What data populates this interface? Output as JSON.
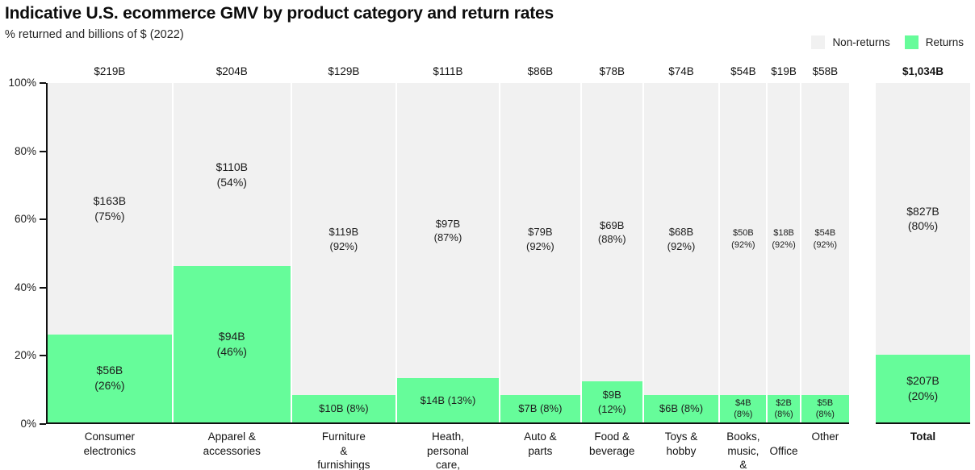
{
  "header": {
    "title": "Indicative U.S. ecommerce GMV by product category and return rates",
    "subtitle": "% returned and billions of $ (2022)"
  },
  "legend": {
    "non_returns": "Non-returns",
    "returns": "Returns"
  },
  "colors": {
    "returns": "#66fc9a",
    "non_returns": "#f1f1f1",
    "axis": "#111111"
  },
  "chart_data": {
    "type": "bar",
    "variant": "marimekko-stacked",
    "title": "Indicative U.S. ecommerce GMV by product category and return rates",
    "subtitle": "% returned and billions of $ (2022)",
    "unit": "billions of $",
    "y_axis": {
      "ticks": [
        "0%",
        "20%",
        "40%",
        "60%",
        "80%",
        "100%"
      ],
      "range": [
        0,
        100
      ]
    },
    "legend_position": "top-right",
    "series_names": [
      "Non-returns",
      "Returns"
    ],
    "categories": [
      {
        "name": "Consumer electronics",
        "axis_label": "Consumer electronics",
        "gmv": 219,
        "gmv_label": "$219B",
        "non_returns": {
          "value": 163,
          "pct": 75,
          "label": "$163B\n(75%)"
        },
        "returns": {
          "value": 56,
          "pct": 26,
          "label": "$56B\n(26%)"
        }
      },
      {
        "name": "Apparel & accessories",
        "axis_label": "Apparel & accessories",
        "gmv": 204,
        "gmv_label": "$204B",
        "non_returns": {
          "value": 110,
          "pct": 54,
          "label": "$110B\n(54%)"
        },
        "returns": {
          "value": 94,
          "pct": 46,
          "label": "$94B\n(46%)"
        }
      },
      {
        "name": "Furniture & furnishings",
        "axis_label": "Furniture &\nfurnishings",
        "gmv": 129,
        "gmv_label": "$129B",
        "non_returns": {
          "value": 119,
          "pct": 92,
          "label": "$119B\n(92%)"
        },
        "returns": {
          "value": 10,
          "pct": 8,
          "label": "$10B (8%)"
        }
      },
      {
        "name": "Heath, personal care, & beauty",
        "axis_label": "Heath,\npersonal care,\n& beauty",
        "gmv": 111,
        "gmv_label": "$111B",
        "non_returns": {
          "value": 97,
          "pct": 87,
          "label": "$97B\n(87%)"
        },
        "returns": {
          "value": 14,
          "pct": 13,
          "label": "$14B (13%)"
        }
      },
      {
        "name": "Auto & parts",
        "axis_label": "Auto &\nparts",
        "gmv": 86,
        "gmv_label": "$86B",
        "non_returns": {
          "value": 79,
          "pct": 92,
          "label": "$79B\n(92%)"
        },
        "returns": {
          "value": 7,
          "pct": 8,
          "label": "$7B (8%)"
        }
      },
      {
        "name": "Food & beverage",
        "axis_label": "Food &\nbeverage",
        "gmv": 78,
        "gmv_label": "$78B",
        "non_returns": {
          "value": 69,
          "pct": 88,
          "label": "$69B\n(88%)"
        },
        "returns": {
          "value": 9,
          "pct": 12,
          "label": "$9B\n(12%)"
        }
      },
      {
        "name": "Toys & hobby",
        "axis_label": "Toys &\nhobby",
        "gmv": 74,
        "gmv_label": "$74B",
        "non_returns": {
          "value": 68,
          "pct": 92,
          "label": "$68B\n(92%)"
        },
        "returns": {
          "value": 6,
          "pct": 8,
          "label": "$6B (8%)"
        }
      },
      {
        "name": "Books, music, & video",
        "axis_label": "Books,\nmusic,\n& video",
        "gmv": 54,
        "gmv_label": "$54B",
        "non_returns": {
          "value": 50,
          "pct": 92,
          "label": "$50B\n(92%)"
        },
        "returns": {
          "value": 4,
          "pct": 8,
          "label": "$4B\n(8%)"
        }
      },
      {
        "name": "Office",
        "axis_label": "\nOffice",
        "gmv": 19,
        "gmv_label": "$19B",
        "non_returns": {
          "value": 18,
          "pct": 92,
          "label": "$18B\n(92%)"
        },
        "returns": {
          "value": 2,
          "pct": 8,
          "label": "$2B\n(8%)"
        }
      },
      {
        "name": "Other",
        "axis_label": "Other",
        "gmv": 58,
        "gmv_label": "$58B",
        "non_returns": {
          "value": 54,
          "pct": 92,
          "label": "$54B\n(92%)"
        },
        "returns": {
          "value": 5,
          "pct": 8,
          "label": "$5B\n(8%)"
        }
      }
    ],
    "total": {
      "name": "Total",
      "axis_label": "Total",
      "gmv": 1034,
      "gmv_label": "$1,034B",
      "non_returns": {
        "value": 827,
        "pct": 80,
        "label": "$827B\n(80%)"
      },
      "returns": {
        "value": 207,
        "pct": 20,
        "label": "$207B\n(20%)"
      }
    }
  }
}
